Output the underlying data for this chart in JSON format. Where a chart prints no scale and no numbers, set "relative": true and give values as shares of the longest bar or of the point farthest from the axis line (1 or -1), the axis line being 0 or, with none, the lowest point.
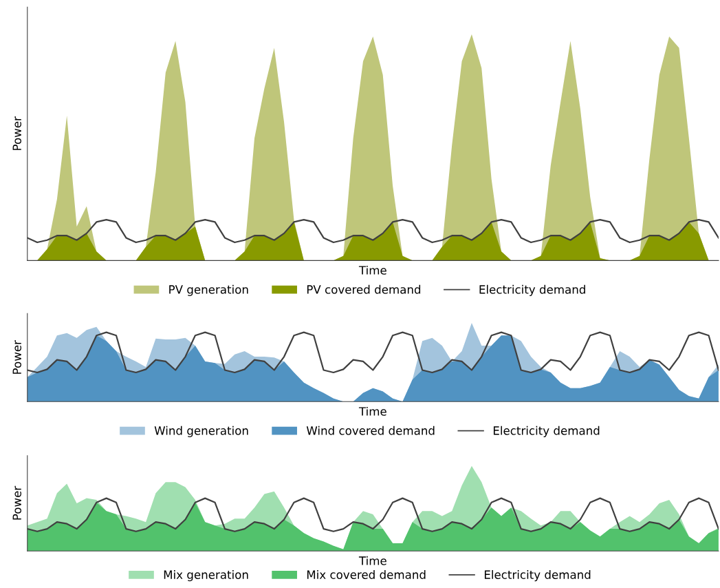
{
  "chart_data": [
    {
      "type": "area",
      "relative": true,
      "xlabel": "Time",
      "ylabel": "Power",
      "legend": "bottom",
      "categories": [
        null,
        null,
        null,
        null,
        null,
        null,
        null,
        null,
        null,
        null,
        null,
        null,
        null,
        null,
        null,
        null,
        null,
        null,
        null,
        null,
        null,
        null,
        null,
        null,
        null,
        null,
        null,
        null,
        null,
        null,
        null,
        null,
        null,
        null,
        null,
        null,
        null,
        null,
        null,
        null,
        null,
        null,
        null,
        null,
        null,
        null,
        null,
        null,
        null,
        null,
        null,
        null,
        null,
        null,
        null,
        null,
        null,
        null,
        null,
        null,
        null,
        null,
        null,
        null,
        null,
        null,
        null,
        null,
        null,
        null,
        null
      ],
      "series": [
        {
          "name": "PV generation",
          "color": "#bfc67a",
          "values": [
            0,
            0,
            0.05,
            0.27,
            0.64,
            0.15,
            0.24,
            0.04,
            0,
            0,
            0,
            0,
            0.06,
            0.39,
            0.83,
            0.97,
            0.7,
            0.15,
            0,
            0,
            0,
            0,
            0.04,
            0.54,
            0.76,
            0.94,
            0.61,
            0.18,
            0,
            0,
            0,
            0,
            0.02,
            0.54,
            0.88,
            0.99,
            0.82,
            0.33,
            0.02,
            0,
            0,
            0,
            0.06,
            0.51,
            0.88,
            1.0,
            0.85,
            0.36,
            0.04,
            0,
            0,
            0,
            0.02,
            0.42,
            0.7,
            0.97,
            0.67,
            0.28,
            0.01,
            0,
            0,
            0,
            0.02,
            0.45,
            0.82,
            0.99,
            0.94,
            0.54,
            0.12,
            0,
            0
          ]
        },
        {
          "name": "PV covered demand",
          "color": "#889a00",
          "values": [
            0,
            0,
            0.05,
            0.11,
            0.11,
            0.09,
            0.12,
            0.04,
            0,
            0,
            0,
            0,
            0.06,
            0.11,
            0.11,
            0.09,
            0.12,
            0.15,
            0,
            0,
            0,
            0,
            0.04,
            0.11,
            0.11,
            0.09,
            0.12,
            0.17,
            0,
            0,
            0,
            0,
            0.02,
            0.11,
            0.11,
            0.09,
            0.12,
            0.17,
            0.02,
            0,
            0,
            0,
            0.06,
            0.11,
            0.11,
            0.09,
            0.12,
            0.17,
            0.04,
            0,
            0,
            0,
            0.02,
            0.11,
            0.11,
            0.09,
            0.12,
            0.17,
            0.01,
            0,
            0,
            0,
            0.02,
            0.11,
            0.11,
            0.09,
            0.12,
            0.17,
            0.12,
            0,
            0
          ]
        },
        {
          "name": "Electricity demand",
          "type": "line",
          "color": "#404040",
          "values": [
            0.1,
            0.08,
            0.09,
            0.11,
            0.11,
            0.09,
            0.12,
            0.17,
            0.18,
            0.17,
            0.1,
            0.08,
            0.09,
            0.11,
            0.11,
            0.09,
            0.12,
            0.17,
            0.18,
            0.17,
            0.1,
            0.08,
            0.09,
            0.11,
            0.11,
            0.09,
            0.12,
            0.17,
            0.18,
            0.17,
            0.1,
            0.08,
            0.09,
            0.11,
            0.11,
            0.09,
            0.12,
            0.17,
            0.18,
            0.17,
            0.1,
            0.08,
            0.09,
            0.11,
            0.11,
            0.09,
            0.12,
            0.17,
            0.18,
            0.17,
            0.1,
            0.08,
            0.09,
            0.11,
            0.11,
            0.09,
            0.12,
            0.17,
            0.18,
            0.17,
            0.1,
            0.08,
            0.09,
            0.11,
            0.11,
            0.09,
            0.12,
            0.17,
            0.18,
            0.17,
            0.1
          ]
        }
      ]
    },
    {
      "type": "area",
      "relative": true,
      "xlabel": "Time",
      "ylabel": "Power",
      "legend": "bottom",
      "categories": [
        null,
        null,
        null,
        null,
        null,
        null,
        null,
        null,
        null,
        null,
        null,
        null,
        null,
        null,
        null,
        null,
        null,
        null,
        null,
        null,
        null,
        null,
        null,
        null,
        null,
        null,
        null,
        null,
        null,
        null,
        null,
        null,
        null,
        null,
        null,
        null,
        null,
        null,
        null,
        null,
        null,
        null,
        null,
        null,
        null,
        null,
        null,
        null,
        null,
        null,
        null,
        null,
        null,
        null,
        null,
        null,
        null,
        null,
        null,
        null,
        null,
        null,
        null,
        null,
        null,
        null,
        null,
        null,
        null,
        null,
        null
      ],
      "series": [
        {
          "name": "Wind generation",
          "color": "#a3c4dd",
          "values": [
            0.31,
            0.44,
            0.57,
            0.84,
            0.87,
            0.81,
            0.91,
            0.95,
            0.77,
            0.64,
            0.57,
            0.51,
            0.44,
            0.8,
            0.79,
            0.79,
            0.81,
            0.71,
            0.51,
            0.49,
            0.48,
            0.6,
            0.64,
            0.57,
            0.57,
            0.56,
            0.51,
            0.37,
            0.24,
            0.17,
            0.11,
            0.04,
            0,
            0,
            0.11,
            0.17,
            0.13,
            0.04,
            0,
            0.28,
            0.77,
            0.81,
            0.71,
            0.51,
            0.64,
            1.0,
            0.71,
            0.71,
            0.84,
            0.84,
            0.77,
            0.57,
            0.44,
            0.37,
            0.24,
            0.17,
            0.17,
            0.2,
            0.24,
            0.44,
            0.64,
            0.57,
            0.44,
            0.53,
            0.47,
            0.31,
            0.15,
            0.07,
            0.04,
            0.31,
            0.47
          ]
        },
        {
          "name": "Wind covered demand",
          "color": "#5193c2",
          "values": [
            0.31,
            0.37,
            0.41,
            0.53,
            0.51,
            0.4,
            0.57,
            0.84,
            0.77,
            0.64,
            0.4,
            0.37,
            0.41,
            0.53,
            0.51,
            0.4,
            0.57,
            0.71,
            0.51,
            0.49,
            0.4,
            0.37,
            0.41,
            0.53,
            0.51,
            0.4,
            0.51,
            0.37,
            0.24,
            0.17,
            0.11,
            0.04,
            0,
            0,
            0.11,
            0.17,
            0.13,
            0.04,
            0,
            0.28,
            0.4,
            0.37,
            0.41,
            0.51,
            0.51,
            0.4,
            0.57,
            0.71,
            0.84,
            0.84,
            0.4,
            0.37,
            0.41,
            0.37,
            0.24,
            0.17,
            0.17,
            0.2,
            0.24,
            0.44,
            0.4,
            0.37,
            0.41,
            0.53,
            0.47,
            0.31,
            0.15,
            0.07,
            0.04,
            0.31,
            0.4
          ]
        },
        {
          "name": "Electricity demand",
          "type": "line",
          "color": "#404040",
          "values": [
            0.4,
            0.37,
            0.41,
            0.53,
            0.51,
            0.4,
            0.57,
            0.84,
            0.88,
            0.84,
            0.4,
            0.37,
            0.41,
            0.53,
            0.51,
            0.4,
            0.57,
            0.84,
            0.88,
            0.84,
            0.4,
            0.37,
            0.41,
            0.53,
            0.51,
            0.4,
            0.57,
            0.84,
            0.88,
            0.84,
            0.4,
            0.37,
            0.41,
            0.53,
            0.51,
            0.4,
            0.57,
            0.84,
            0.88,
            0.84,
            0.4,
            0.37,
            0.41,
            0.53,
            0.51,
            0.4,
            0.57,
            0.84,
            0.88,
            0.84,
            0.4,
            0.37,
            0.41,
            0.53,
            0.51,
            0.4,
            0.57,
            0.84,
            0.88,
            0.84,
            0.4,
            0.37,
            0.41,
            0.53,
            0.51,
            0.4,
            0.57,
            0.84,
            0.88,
            0.84,
            0.4
          ]
        }
      ]
    },
    {
      "type": "area",
      "relative": true,
      "xlabel": "Time",
      "ylabel": "Power",
      "legend": "bottom",
      "categories": [
        null,
        null,
        null,
        null,
        null,
        null,
        null,
        null,
        null,
        null,
        null,
        null,
        null,
        null,
        null,
        null,
        null,
        null,
        null,
        null,
        null,
        null,
        null,
        null,
        null,
        null,
        null,
        null,
        null,
        null,
        null,
        null,
        null,
        null,
        null,
        null,
        null,
        null,
        null,
        null,
        null,
        null,
        null,
        null,
        null,
        null,
        null,
        null,
        null,
        null,
        null,
        null,
        null,
        null,
        null,
        null,
        null,
        null,
        null,
        null,
        null,
        null,
        null,
        null,
        null,
        null,
        null,
        null,
        null,
        null,
        null
      ],
      "series": [
        {
          "name": "Mix generation",
          "color": "#a0dfb0",
          "values": [
            0.3,
            0.34,
            0.38,
            0.68,
            0.79,
            0.56,
            0.62,
            0.6,
            0.47,
            0.43,
            0.41,
            0.38,
            0.34,
            0.68,
            0.81,
            0.81,
            0.75,
            0.6,
            0.34,
            0.3,
            0.32,
            0.38,
            0.38,
            0.51,
            0.67,
            0.7,
            0.51,
            0.3,
            0.21,
            0.15,
            0.11,
            0.06,
            0.02,
            0.34,
            0.47,
            0.43,
            0.26,
            0.09,
            0.09,
            0.34,
            0.47,
            0.47,
            0.41,
            0.47,
            0.77,
            1.0,
            0.81,
            0.51,
            0.41,
            0.51,
            0.47,
            0.38,
            0.3,
            0.34,
            0.47,
            0.47,
            0.34,
            0.24,
            0.17,
            0.26,
            0.34,
            0.41,
            0.34,
            0.43,
            0.56,
            0.6,
            0.43,
            0.17,
            0.09,
            0.21,
            0.27
          ]
        },
        {
          "name": "Mix covered demand",
          "color": "#52c26c",
          "values": [
            0.26,
            0.23,
            0.26,
            0.34,
            0.32,
            0.26,
            0.37,
            0.57,
            0.47,
            0.43,
            0.26,
            0.23,
            0.26,
            0.34,
            0.32,
            0.26,
            0.37,
            0.57,
            0.34,
            0.3,
            0.26,
            0.23,
            0.26,
            0.34,
            0.32,
            0.26,
            0.37,
            0.3,
            0.21,
            0.15,
            0.11,
            0.06,
            0.02,
            0.34,
            0.32,
            0.26,
            0.26,
            0.09,
            0.09,
            0.34,
            0.26,
            0.23,
            0.26,
            0.34,
            0.32,
            0.26,
            0.37,
            0.51,
            0.41,
            0.51,
            0.26,
            0.23,
            0.26,
            0.34,
            0.32,
            0.26,
            0.34,
            0.24,
            0.17,
            0.26,
            0.26,
            0.23,
            0.26,
            0.34,
            0.32,
            0.26,
            0.37,
            0.17,
            0.09,
            0.21,
            0.26
          ]
        },
        {
          "name": "Electricity demand",
          "type": "line",
          "color": "#404040",
          "values": [
            0.26,
            0.23,
            0.26,
            0.34,
            0.32,
            0.26,
            0.37,
            0.57,
            0.62,
            0.57,
            0.26,
            0.23,
            0.26,
            0.34,
            0.32,
            0.26,
            0.37,
            0.57,
            0.62,
            0.57,
            0.26,
            0.23,
            0.26,
            0.34,
            0.32,
            0.26,
            0.37,
            0.57,
            0.62,
            0.57,
            0.26,
            0.23,
            0.26,
            0.34,
            0.32,
            0.26,
            0.37,
            0.57,
            0.62,
            0.57,
            0.26,
            0.23,
            0.26,
            0.34,
            0.32,
            0.26,
            0.37,
            0.57,
            0.62,
            0.57,
            0.26,
            0.23,
            0.26,
            0.34,
            0.32,
            0.26,
            0.37,
            0.57,
            0.62,
            0.57,
            0.26,
            0.23,
            0.26,
            0.34,
            0.32,
            0.26,
            0.37,
            0.57,
            0.62,
            0.57,
            0.26
          ]
        }
      ]
    }
  ]
}
